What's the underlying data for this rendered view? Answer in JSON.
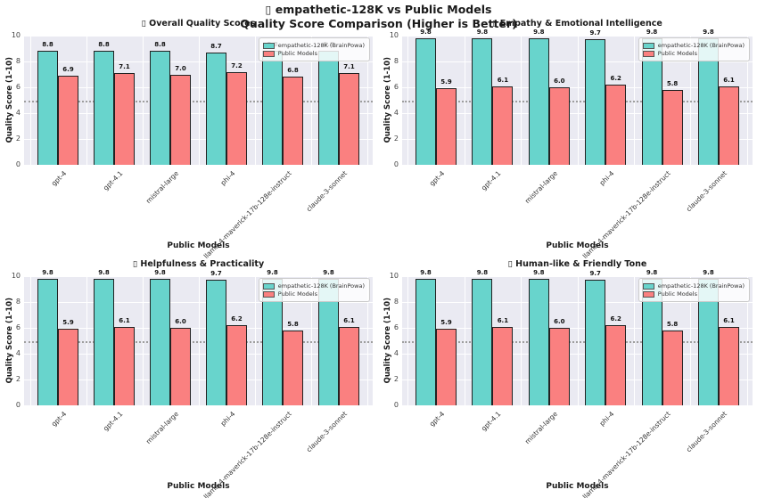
{
  "figure": {
    "title_line1": "▯ empathetic-128K vs Public Models",
    "title_line2": "Quality Score Comparison (Higher is Better)"
  },
  "legend": {
    "items": [
      {
        "label": "empathetic-128K (BrainPowa)",
        "color": "#68d4cc"
      },
      {
        "label": "Public Models",
        "color": "#fa8080"
      }
    ]
  },
  "colors": {
    "empathetic_bar": "#68d4cc",
    "public_bar": "#fa8080",
    "bar_edge": "#222222",
    "plot_background": "#eaeaf2",
    "gridline": "#ffffff",
    "threshold_line": "#9e9e9e",
    "text": "#262626"
  },
  "categories": [
    "gpt-4",
    "gpt-4.1",
    "mistral-large",
    "phi-4",
    "llama-4-maverick-17b-128e-instruct",
    "claude-3-sonnet"
  ],
  "chart_data": [
    {
      "type": "bar",
      "title": "▯ Overall Quality Scores",
      "xlabel": "Public Models",
      "ylabel": "Quality Score (1-10)",
      "ylim": [
        0,
        10
      ],
      "yticks": [
        0,
        2,
        4,
        6,
        8,
        10
      ],
      "grid": true,
      "threshold_line": 5,
      "legend_position": "upper right",
      "categories": [
        "gpt-4",
        "gpt-4.1",
        "mistral-large",
        "phi-4",
        "llama-4-maverick-17b-128e-instruct",
        "claude-3-sonnet"
      ],
      "series": [
        {
          "name": "empathetic-128K (BrainPowa)",
          "values": [
            8.8,
            8.8,
            8.8,
            8.7,
            8.8,
            8.8
          ]
        },
        {
          "name": "Public Models",
          "values": [
            6.9,
            7.1,
            7.0,
            7.2,
            6.8,
            7.1
          ]
        }
      ]
    },
    {
      "type": "bar",
      "title": "▯ Empathy & Emotional Intelligence",
      "xlabel": "Public Models",
      "ylabel": "Quality Score (1-10)",
      "ylim": [
        0,
        10
      ],
      "yticks": [
        0,
        2,
        4,
        6,
        8,
        10
      ],
      "grid": true,
      "threshold_line": 5,
      "legend_position": "upper right",
      "categories": [
        "gpt-4",
        "gpt-4.1",
        "mistral-large",
        "phi-4",
        "llama-4-maverick-17b-128e-instruct",
        "claude-3-sonnet"
      ],
      "series": [
        {
          "name": "empathetic-128K (BrainPowa)",
          "values": [
            9.8,
            9.8,
            9.8,
            9.7,
            9.8,
            9.8
          ]
        },
        {
          "name": "Public Models",
          "values": [
            5.9,
            6.1,
            6.0,
            6.2,
            5.8,
            6.1
          ]
        }
      ]
    },
    {
      "type": "bar",
      "title": "▯ Helpfulness & Practicality",
      "xlabel": "Public Models",
      "ylabel": "Quality Score (1-10)",
      "ylim": [
        0,
        10
      ],
      "yticks": [
        0,
        2,
        4,
        6,
        8,
        10
      ],
      "grid": true,
      "threshold_line": 5,
      "legend_position": "upper right",
      "categories": [
        "gpt-4",
        "gpt-4.1",
        "mistral-large",
        "phi-4",
        "llama-4-maverick-17b-128e-instruct",
        "claude-3-sonnet"
      ],
      "series": [
        {
          "name": "empathetic-128K (BrainPowa)",
          "values": [
            9.8,
            9.8,
            9.8,
            9.7,
            9.8,
            9.8
          ]
        },
        {
          "name": "Public Models",
          "values": [
            5.9,
            6.1,
            6.0,
            6.2,
            5.8,
            6.1
          ]
        }
      ]
    },
    {
      "type": "bar",
      "title": "▯ Human-like & Friendly Tone",
      "xlabel": "Public Models",
      "ylabel": "Quality Score (1-10)",
      "ylim": [
        0,
        10
      ],
      "yticks": [
        0,
        2,
        4,
        6,
        8,
        10
      ],
      "grid": true,
      "threshold_line": 5,
      "legend_position": "upper right",
      "categories": [
        "gpt-4",
        "gpt-4.1",
        "mistral-large",
        "phi-4",
        "llama-4-maverick-17b-128e-instruct",
        "claude-3-sonnet"
      ],
      "series": [
        {
          "name": "empathetic-128K (BrainPowa)",
          "values": [
            9.8,
            9.8,
            9.8,
            9.7,
            9.8,
            9.8
          ]
        },
        {
          "name": "Public Models",
          "values": [
            5.9,
            6.1,
            6.0,
            6.2,
            5.8,
            6.1
          ]
        }
      ]
    }
  ]
}
